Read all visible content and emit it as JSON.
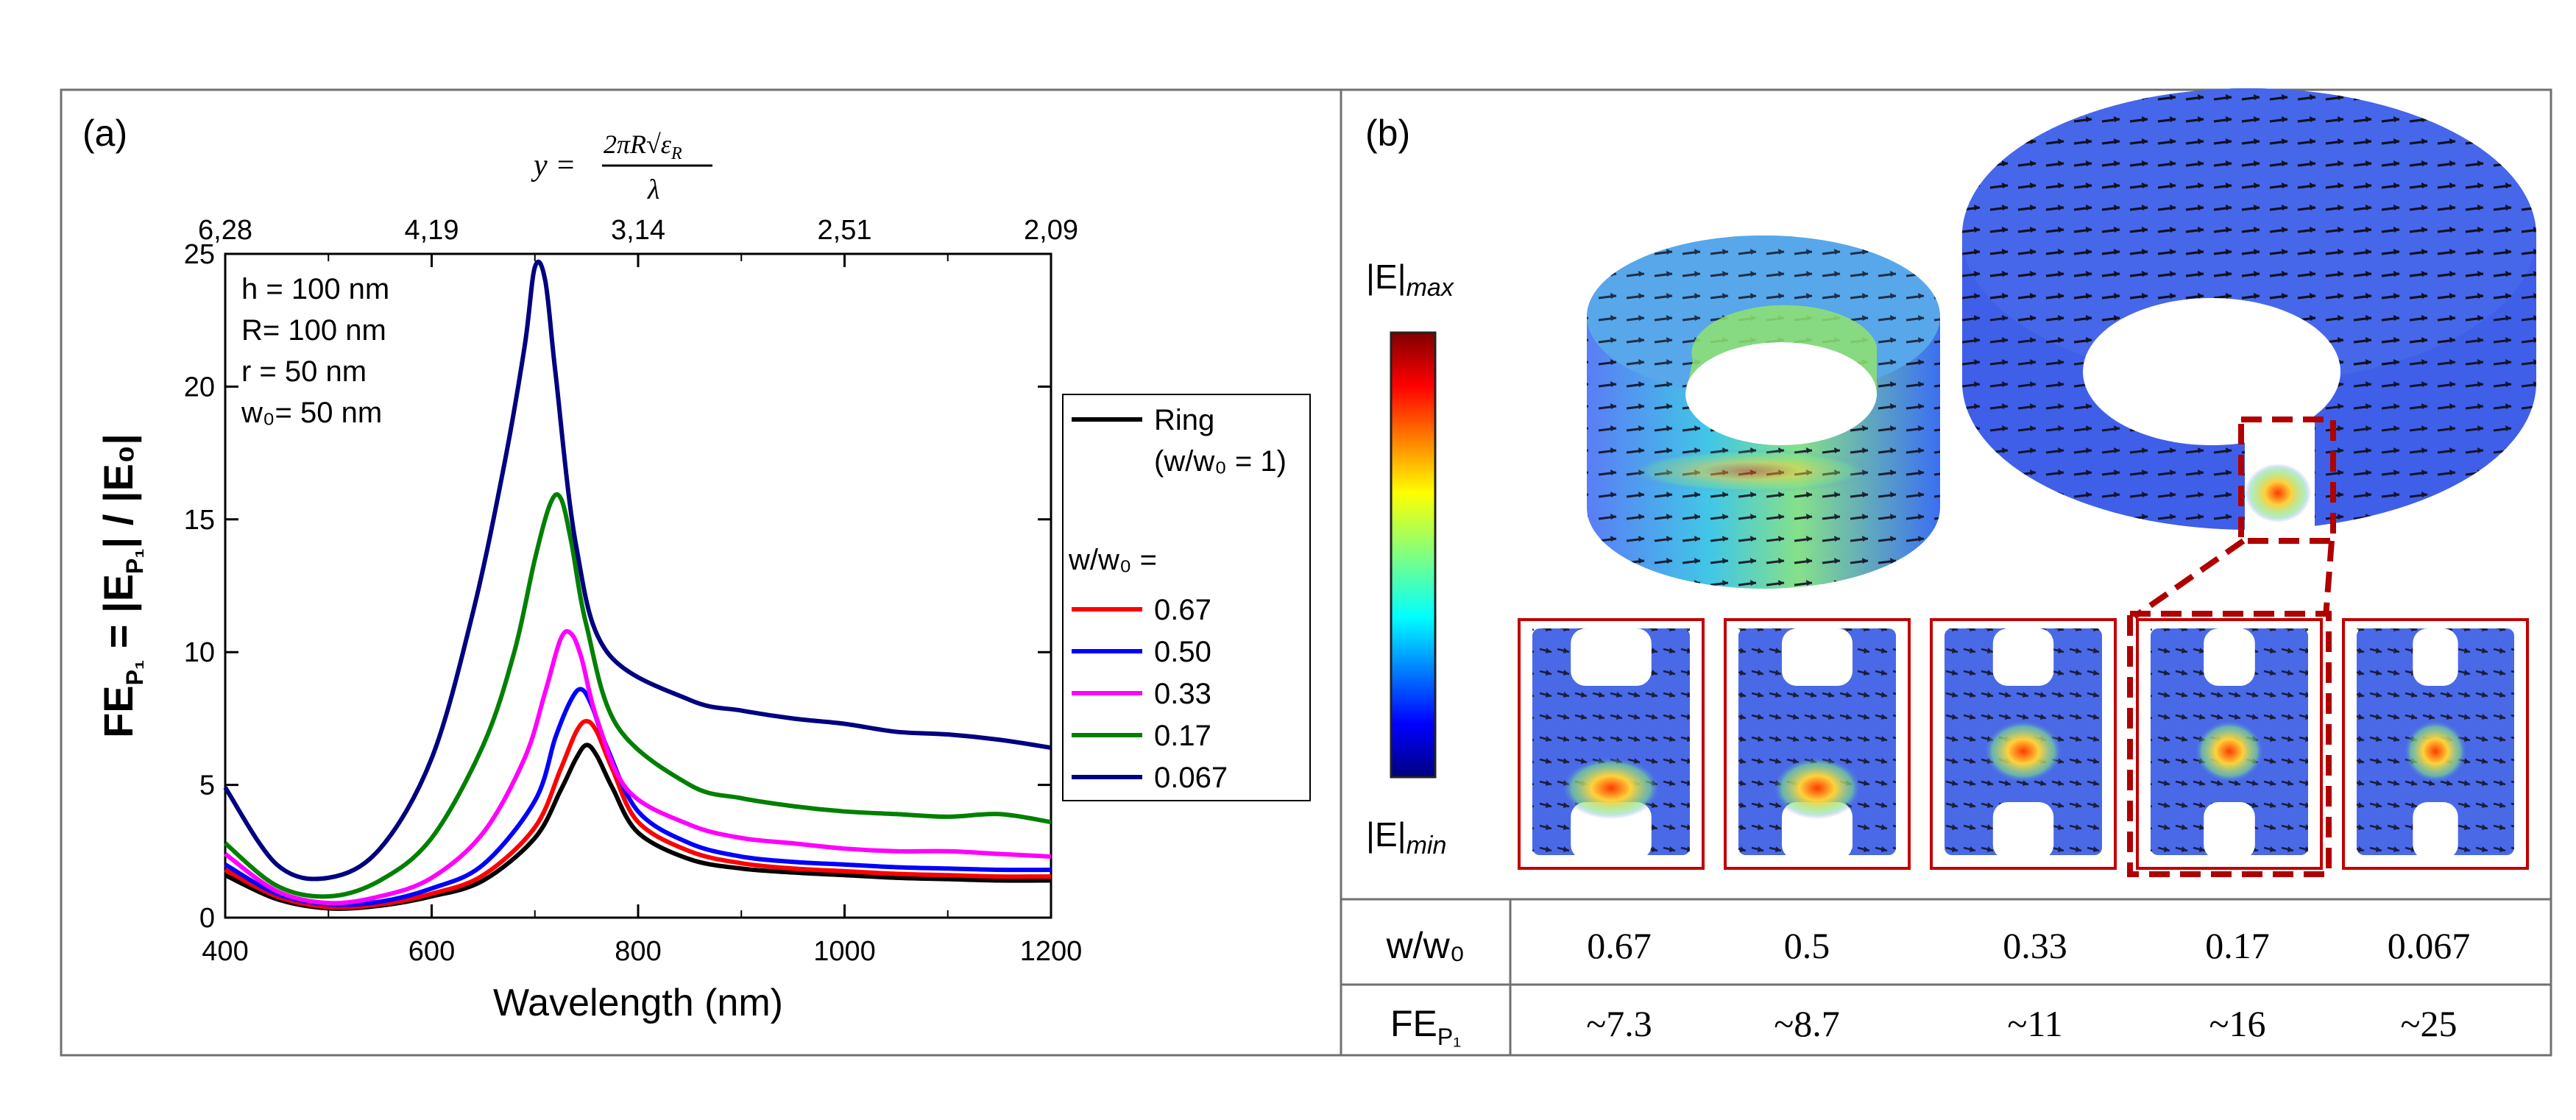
{
  "panel_a": {
    "label": "(a)",
    "top_axis_label": {
      "lhs": "y = ",
      "numerator": "2πR√ε",
      "numerator_sub": "R",
      "denominator": "λ"
    },
    "top_ticks": [
      {
        "text": "6,28",
        "wavelength": 400
      },
      {
        "text": "4,19",
        "wavelength": 600
      },
      {
        "text": "3,14",
        "wavelength": 800
      },
      {
        "text": "2,51",
        "wavelength": 1000
      },
      {
        "text": "2,09",
        "wavelength": 1200
      }
    ],
    "params": [
      "h = 100 nm",
      "R= 100 nm",
      "r = 50 nm",
      "w₀= 50 nm"
    ],
    "ylabel_main": "FE",
    "ylabel_sub": "P₁",
    "ylabel_rest": " = |E",
    "ylabel_sub2": "P₁",
    "ylabel_end": "| / |E₀|",
    "legend": {
      "ring_label": "Ring",
      "ring_sub": "(w/w₀ = 1)",
      "group_title": "w/w₀ ="
    }
  },
  "chart_data": {
    "type": "line",
    "xlabel": "Wavelength (nm)",
    "ylabel": "FE_P1 = |E_P1| / |E_0|",
    "xlim": [
      400,
      1200
    ],
    "ylim": [
      0,
      25
    ],
    "xticks": [
      400,
      600,
      800,
      1000,
      1200
    ],
    "yticks": [
      0,
      5,
      10,
      15,
      20,
      25
    ],
    "series": [
      {
        "name": "Ring",
        "color": "#000000",
        "x": [
          400,
          450,
          500,
          550,
          600,
          650,
          700,
          725,
          740,
          750,
          760,
          775,
          800,
          850,
          900,
          950,
          1000,
          1050,
          1100,
          1150,
          1200
        ],
        "y": [
          1.6,
          0.7,
          0.35,
          0.45,
          0.8,
          1.4,
          3.0,
          4.8,
          6.0,
          6.5,
          6.1,
          4.9,
          3.2,
          2.2,
          1.85,
          1.7,
          1.6,
          1.5,
          1.45,
          1.4,
          1.4
        ]
      },
      {
        "name": "0.67",
        "color": "#ff0000",
        "x": [
          400,
          450,
          500,
          550,
          600,
          650,
          700,
          725,
          740,
          750,
          760,
          775,
          800,
          850,
          900,
          950,
          1000,
          1050,
          1100,
          1150,
          1200
        ],
        "y": [
          1.8,
          0.8,
          0.4,
          0.5,
          0.9,
          1.6,
          3.4,
          5.6,
          7.0,
          7.4,
          7.0,
          5.6,
          3.6,
          2.5,
          2.05,
          1.85,
          1.75,
          1.65,
          1.6,
          1.55,
          1.55
        ]
      },
      {
        "name": "0.50",
        "color": "#0000ff",
        "x": [
          400,
          450,
          500,
          550,
          600,
          650,
          700,
          720,
          735,
          745,
          755,
          770,
          800,
          850,
          900,
          950,
          1000,
          1050,
          1100,
          1150,
          1200
        ],
        "y": [
          2.0,
          0.9,
          0.5,
          0.6,
          1.1,
          2.0,
          4.4,
          6.8,
          8.2,
          8.6,
          8.0,
          6.4,
          4.0,
          2.8,
          2.3,
          2.1,
          2.0,
          1.9,
          1.85,
          1.8,
          1.8
        ]
      },
      {
        "name": "0.33",
        "color": "#ff00ff",
        "x": [
          400,
          450,
          500,
          550,
          600,
          650,
          690,
          710,
          725,
          735,
          745,
          760,
          790,
          850,
          900,
          950,
          1000,
          1050,
          1100,
          1150,
          1200
        ],
        "y": [
          2.4,
          1.0,
          0.55,
          0.8,
          1.5,
          3.2,
          6.0,
          8.5,
          10.5,
          10.7,
          9.8,
          7.5,
          4.8,
          3.5,
          3.0,
          2.8,
          2.6,
          2.5,
          2.5,
          2.4,
          2.3
        ]
      },
      {
        "name": "0.17",
        "color": "#008000",
        "x": [
          400,
          450,
          500,
          550,
          600,
          650,
          680,
          700,
          715,
          725,
          735,
          750,
          780,
          850,
          900,
          950,
          1000,
          1050,
          1100,
          1150,
          1200
        ],
        "y": [
          2.8,
          1.2,
          0.8,
          1.4,
          3.0,
          6.5,
          10.0,
          13.5,
          15.6,
          15.8,
          14.2,
          11.0,
          7.2,
          5.0,
          4.5,
          4.2,
          4.0,
          3.9,
          3.8,
          3.9,
          3.6
        ]
      },
      {
        "name": "0.067",
        "color": "#000080",
        "x": [
          400,
          450,
          500,
          550,
          600,
          640,
          670,
          690,
          700,
          710,
          720,
          740,
          770,
          850,
          900,
          950,
          1000,
          1050,
          1100,
          1150,
          1200
        ],
        "y": [
          4.9,
          2.0,
          1.5,
          2.6,
          6.0,
          11.5,
          17.0,
          21.5,
          24.5,
          24.0,
          20.5,
          14.0,
          10.0,
          8.2,
          7.8,
          7.5,
          7.3,
          7.0,
          6.9,
          6.7,
          6.4
        ]
      }
    ]
  },
  "panel_b": {
    "label": "(b)",
    "colorbar": {
      "max_label": "|E|",
      "max_sub": "max",
      "min_label": "|E|",
      "min_sub": "min"
    },
    "table": {
      "row1_header": "w/w₀",
      "row1_values": [
        "0.67",
        "0.5",
        "0.33",
        "0.17",
        "0.067"
      ],
      "row2_header": "FE",
      "row2_header_sub": "P₁",
      "row2_values": [
        "~7.3",
        "~8.7",
        "~11",
        "~16",
        "~25"
      ]
    }
  }
}
